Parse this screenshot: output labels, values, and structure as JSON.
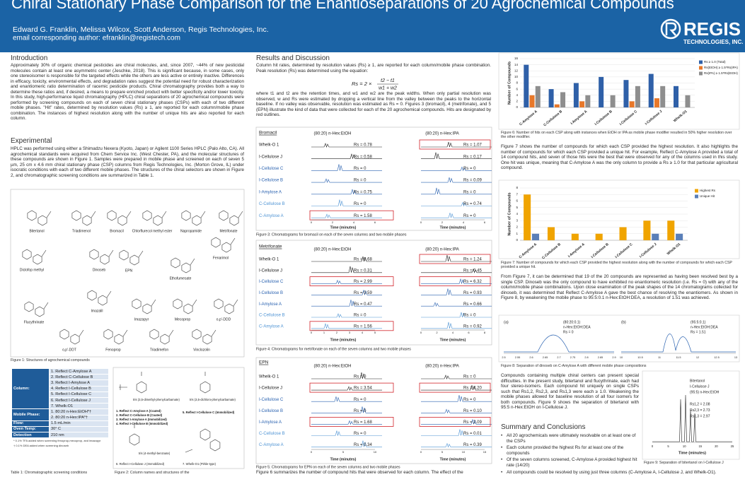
{
  "header": {
    "title": "Chiral Stationary Phase Comparison for the Enantioseparations of 20 Agrochemical Compounds",
    "authors": "Edward G. Franklin, Melissa Wilcox, Scott Anderson, Regis Technologies, Inc.",
    "email": "email corresponding author: efranklin@registech.com",
    "logo": "REGIS",
    "logo_sub": "TECHNOLOGIES, INC."
  },
  "introduction": {
    "heading": "Introduction",
    "text": "Approximately 30% of organic chemical pesticides are chiral molecules, and, since 2007, ~44% of new pesticidal molecules contain at least one asymmetric center (Jeschke, 2018). This is significant because, in some cases, only one stereoisomer is responsible for the targeted effects while the others are less active or entirely inactive. Differences in efficacy, toxicity, environmental effects, and degradation rates suggest the potential need for robust characterization and enantiomeric ratio determination of racemic pesticide products. Chiral chromatography provides both a way to determine these ratios and, if desired, a means to prepare enriched product with better specificity and/or lower toxicity. In this study, high-performance liquid chromatography (HPLC) chiral separations of 20 agrochemical compounds were performed by screening compounds on each of seven chiral stationary phases (CSPs) with each of two different mobile phases. \"Hit\" rates, determined by resolution values (Rs) ≥ 1, are reported for each column/mobile phase combination. The instances of highest resolution along with the number of unique hits are also reported for each column."
  },
  "experimental": {
    "heading": "Experimental",
    "text": "HPLC was performed using either a Shimadzu Nexera (Kyoto, Japan) or Agilent 1100 Series HPLC (Palo Alto, CA). All agrochemical standards were acquired from Chem Service Inc. (West Chester, PA), and the molecular structures of these compounds are shown in Figure 1. Samples were prepared in mobile phase and screened on each of seven 5 µm, 25 cm x 4.6 mm chiral stationary phase (CSP) columns from Regis Technologies, Inc. (Morton Grove, IL) under isocratic conditions with each of two different mobile phases. The structures of the chiral selectors are shown in Figure 2, and chromatographic screening conditions are summarized in Table 1."
  },
  "figure1": {
    "compounds": [
      "Bitertanol",
      "Triadimenol",
      "Bromacil",
      "Chlorflurecol methyl ester",
      "Napropamide",
      "Metrifonate",
      "Diclofop methyl",
      "Dinoseb",
      "EPN",
      "Ethofumesate",
      "Fenarimol",
      "Imazalil",
      "Flucythrinate",
      "Imazapyr",
      "Mecoprop",
      "o,p'-DDD",
      "o,p'-DDT",
      "Fenoprop",
      "Triadimefon",
      "Vinclozolin"
    ],
    "caption": "Figure 1: Structures of agrochemical compounds"
  },
  "table1": {
    "rows": [
      {
        "label": "Column:",
        "items": [
          "1. Reflect C-Amylose A",
          "2. Reflect C-Cellulose B",
          "3. Reflect I-Amylose A",
          "4. Reflect I-Cellulose B",
          "5. Reflect I-Cellulose C",
          "6. Reflect I-Cellulose J",
          "7. Whelk-O1"
        ]
      },
      {
        "label": "Mobile Phase:",
        "items": [
          "1. 80:20 n-Hex:EtOH*†",
          "2. 80:20 n-Hex:IPA*†"
        ]
      },
      {
        "label": "Flow:",
        "items": [
          "1.5 mL/min"
        ]
      },
      {
        "label": "Oven Temp:",
        "items": [
          "30° C"
        ]
      },
      {
        "label": "Detection",
        "items": [
          "210 nm"
        ]
      }
    ],
    "notes": [
      "* 0.1% TFA added when screening fenoprop,mecoprop, and imazapyr",
      "† 0.1% DEA added when screening dinoseb"
    ],
    "caption": "Table 1: Chromatographic screening conditions"
  },
  "figure2": {
    "labels": [
      "tris (3,5-dimethyl-phenylcarbamate)",
      "tris (3,5-dichloro-phenylcarbamate)",
      "1. Reflect C-Amylose A (Coated)",
      "2. Reflect C-Cellulose B (Coated)",
      "3. Reflect I-Amylose A (Immobilized)",
      "4. Reflect I-Cellulose B (Immobilized)",
      "5. Reflect I-Cellulose C (Immobilized)",
      "tris (4-methyl-benzoate)",
      "6. Reflect I-Cellulose J (Immobilized)",
      "7. Whelk-O1 (Pirkle-type)"
    ],
    "caption": "Figure 2: Column names and structures of the"
  },
  "results": {
    "heading": "Results and Discussion",
    "text1": "Column hit rates, determined by resolution values (Rs) ≥ 1, are reported for each column/mobile phase combination. Peak resolution (Rs) was determined using the equation:",
    "equation": {
      "lhs": "Rs = 2 ×",
      "num": "t2 − t1",
      "den": "w1 + w2"
    },
    "text2": "where t1 and t2 are the retention times, and w1 and w2 are the peak widths. When only partial resolution was observed, w and Rs were estimated by dropping a vertical line from the valley between the peaks to the horizontal baseline. If no valley was observable, resolution was estimated as Rs = 0. Figures 3 (bromacil), 4 (metrifonate), and 5 (EPN) illustrate the kind of data that were collected for each of the 20 agrochemical compounds. Hits are designated by red outlines.",
    "text3": "Figure 6 summarizes the number of compound hits that were observed for each column. The effect of the"
  },
  "chromatograms": [
    {
      "compound": "Bromacil",
      "phases": [
        "(80:20) n-Hex:EtOH",
        "(80:20) n-Hex:IPA"
      ],
      "rows": [
        {
          "column": "Whelk-O 1",
          "color": "#222222",
          "rs": [
            "Rs = 0.78",
            "Rs = 1.07"
          ],
          "highlight": [
            false,
            true
          ]
        },
        {
          "column": "I-Cellulose J",
          "color": "#222222",
          "rs": [
            "Rs = 0.58",
            "Rs = 0.17"
          ],
          "highlight": [
            false,
            false
          ]
        },
        {
          "column": "I-Cellulose C",
          "color": "#2a62b0",
          "rs": [
            "Rs = 0",
            "Rs = 0"
          ],
          "highlight": [
            false,
            false
          ]
        },
        {
          "column": "I-Cellulose B",
          "color": "#2a62b0",
          "rs": [
            "Rs = 0",
            "Rs = 0.09"
          ],
          "highlight": [
            false,
            false
          ]
        },
        {
          "column": "I-Amylose A",
          "color": "#2a62b0",
          "rs": [
            "Rs = 0.75",
            "Rs = 0"
          ],
          "highlight": [
            false,
            false
          ]
        },
        {
          "column": "C-Cellulose B",
          "color": "#4f94d4",
          "rs": [
            "Rs = 0",
            "Rs = 0.74"
          ],
          "highlight": [
            false,
            false
          ]
        },
        {
          "column": "C-Amylose A",
          "color": "#4f94d4",
          "rs": [
            "Rs = 1.58",
            "Rs = 0"
          ],
          "highlight": [
            true,
            false
          ]
        }
      ],
      "ticks": [
        [
          0,
          2,
          4,
          6
        ],
        [
          0,
          2,
          4,
          6
        ]
      ],
      "xlabel": "Time (minutes)",
      "caption": "Figure 3: Chromatograms for bromacil on each of the seven columns and two mobile phases"
    },
    {
      "compound": "Metrifonate",
      "phases": [
        "(80:20) n-Hex:EtOH",
        "(80:20) n-Hex:IPA"
      ],
      "rows": [
        {
          "column": "Whelk-O 1",
          "color": "#222222",
          "rs": [
            "Rs = 0.68",
            "Rs = 1.24"
          ],
          "highlight": [
            false,
            true
          ]
        },
        {
          "column": "I-Cellulose J",
          "color": "#222222",
          "rs": [
            "Rs = 0.31",
            "Rs = 0.45"
          ],
          "highlight": [
            false,
            false
          ]
        },
        {
          "column": "I-Cellulose C",
          "color": "#2a62b0",
          "rs": [
            "Rs = 2.99",
            "Rs = 6.32"
          ],
          "highlight": [
            true,
            true
          ]
        },
        {
          "column": "I-Cellulose B",
          "color": "#2a62b0",
          "rs": [
            "Rs = 0.59",
            "Rs = 0.93"
          ],
          "highlight": [
            false,
            false
          ]
        },
        {
          "column": "I-Amylose A",
          "color": "#2a62b0",
          "rs": [
            "Rs = 0.47",
            "Rs = 0.66"
          ],
          "highlight": [
            false,
            false
          ]
        },
        {
          "column": "C-Cellulose B",
          "color": "#4f94d4",
          "rs": [
            "Rs = 0",
            "Rs = 0"
          ],
          "highlight": [
            false,
            false
          ]
        },
        {
          "column": "C-Amylose A",
          "color": "#4f94d4",
          "rs": [
            "Rs = 1.56",
            "Rs = 0.92"
          ],
          "highlight": [
            true,
            false
          ]
        }
      ],
      "ticks": [
        [
          0,
          1,
          2,
          3,
          4,
          5
        ],
        [
          0,
          2,
          4,
          6,
          8
        ]
      ],
      "xlabel": "Time (minutes)",
      "caption": "Figure 4: Chromatograms for metrifonate on each of the seven columns and two mobile phases"
    },
    {
      "compound": "EPN",
      "phases": [
        "(80:20) n-Hex:EtOH",
        "(80:20) n-Hex:IPA"
      ],
      "rows": [
        {
          "column": "Whelk-O 1",
          "color": "#222222",
          "rs": [
            "Rs = 0",
            "Rs = 0"
          ],
          "highlight": [
            false,
            false
          ]
        },
        {
          "column": "I-Cellulose J",
          "color": "#222222",
          "rs": [
            "Rs = 3.54",
            "Rs = 4.20"
          ],
          "highlight": [
            true,
            true
          ]
        },
        {
          "column": "I-Cellulose C",
          "color": "#2a62b0",
          "rs": [
            "Rs = 0",
            "Rs = 0"
          ],
          "highlight": [
            false,
            false
          ]
        },
        {
          "column": "I-Cellulose B",
          "color": "#2a62b0",
          "rs": [
            "Rs = 0",
            "Rs = 0.10"
          ],
          "highlight": [
            false,
            false
          ]
        },
        {
          "column": "I-Amylose A",
          "color": "#2a62b0",
          "rs": [
            "Rs = 1.68",
            "Rs = 2.09"
          ],
          "highlight": [
            true,
            true
          ]
        },
        {
          "column": "C-Cellulose B",
          "color": "#4f94d4",
          "rs": [
            "Rs = 0",
            "Rs = 0.01"
          ],
          "highlight": [
            false,
            false
          ]
        },
        {
          "column": "C-Amylose A",
          "color": "#4f94d4",
          "rs": [
            "Rs = 0.34",
            "Rs = 0.39"
          ],
          "highlight": [
            false,
            false
          ]
        }
      ],
      "ticks": [
        [
          0,
          5,
          10
        ],
        [
          0,
          5,
          10,
          15
        ]
      ],
      "xlabel": "Time (minutes)",
      "caption": "Figure 5: Chromatograms for EPN on each of the seven columns and two mobile phases"
    }
  ],
  "chart_data": [
    {
      "type": "bar",
      "ylabel": "Number of Compounds",
      "categories": [
        "C-Amylose A",
        "C-Cellulose B",
        "I-Amylose A",
        "I-Cellulose B",
        "I-Cellulose C",
        "I-Cellulose J",
        "Whelk-O1"
      ],
      "series": [
        {
          "name": "Rs ≥ 1.0 (Total)",
          "color": "#2f60a8",
          "values": [
            14,
            6,
            8,
            10,
            9,
            11,
            7
          ]
        },
        {
          "name": "Rs(EtOH) ≥ 1.5*Rs(IPA)",
          "color": "#e8782a",
          "values": [
            4,
            1,
            2,
            0,
            2,
            3,
            0
          ]
        },
        {
          "name": "Rs(IPA) ≥ 1.5*Rs(EtOH)",
          "color": "#8e8e8e",
          "values": [
            7,
            5,
            4,
            4,
            7,
            7,
            4
          ]
        }
      ],
      "ylim": [
        0,
        16
      ],
      "yticks": [
        0,
        2,
        4,
        6,
        8,
        10,
        12,
        14,
        16
      ],
      "grid": true,
      "legend": "right",
      "caption": "Figure 6: Number of hits on each CSP along with instances when EtOH or IPA as mobile phase modifier resulted in 50% higher resolution over the other modifier."
    },
    {
      "type": "bar",
      "ylabel": "Number of Compounds",
      "categories": [
        "C-Amylose A",
        "C-Cellulose B",
        "I-Amylose A",
        "I-Cellulose B",
        "I-Cellulose C",
        "I-Cellulose J",
        "Whelk-O1"
      ],
      "series": [
        {
          "name": "Highest Rs",
          "color": "#f0a400",
          "values": [
            7,
            2,
            1,
            1,
            2,
            3,
            3
          ]
        },
        {
          "name": "Unique Hit",
          "color": "#5a7fb8",
          "values": [
            1,
            0,
            0,
            0,
            0,
            1,
            1
          ]
        }
      ],
      "ylim": [
        0,
        8
      ],
      "yticks": [
        0,
        1,
        2,
        3,
        4,
        5,
        6,
        7,
        8
      ],
      "grid": true,
      "legend": "right",
      "caption": "Figure 7: Number of compounds for which each CSP provided the highest resolution along with the number of compounds for which each CSP provided a unique hit."
    }
  ],
  "discussion": {
    "text1": "Figure 7 shows the number of compounds for which each CSP provided the highest resolution. It also highlights the number of compounds for which each CSP provided a unique hit. For example, Reflect C-Amylose A provided a total of 14 compound hits, and seven of those hits were the best that were observed for any of the columns used in this study. One hit was unique, meaning that C-Amylose A was the only column to provide a Rs ≥ 1.0 for that particular agricultural compound.",
    "text2": "From Figure 7, it can be determined that 19 of the 20 compounds are represented as having been resolved best by a single CSP. Dinoseb was the only compound to have exhibited no enantiomeric resolution (i.e. Rs = 0) with any of the column/mobile phase combinations. Upon close examination of the peak shapes of the 14 chromatograms collected for dinoseb, it was determined that Reflect C-Amylose A gave the best chance of resolving the enantiomers. As shown in Figure 8, by weakening the mobile phase to 95:5:0.1 n-Hex:EtOH:DEA, a resolution of 1.51 was achieved.",
    "text3": "Compounds containing multiple chiral centers can present special difficulties. In the present study, bitertanol and flucythrinate, each had four stereo-isomers. Each compound hit uniquely on single CSPs such that Rs1,2, Rs2,3, and Rs1,3 were each ≥ 1.0. Weakening the mobile phases allowed for baseline resolution of all four isomers for both compounds. Figure 9 shows the separation of bitertanol with 95:5 n-Hex:EtOH on I-Cellulose J."
  },
  "figure8": {
    "panels": [
      {
        "tag": "(a)",
        "lines": [
          "(80:20:0.1)",
          "n-Hex:EtOH:DEA",
          "Rs = 0"
        ],
        "ticks": [
          2.5,
          2.55,
          2.6,
          2.65,
          2.7,
          2.75,
          2.8,
          2.85,
          2.9
        ]
      },
      {
        "tag": "(b)",
        "lines": [
          "(95:5:0.1)",
          "n-Hex:EtOH:DEA",
          "Rs = 1.51"
        ],
        "ticks": [
          10,
          10.5,
          11,
          11.5,
          12,
          12.5,
          13
        ]
      }
    ],
    "caption": "Figure 8: Separation of dinoseb on C-Amylose A with different mobile phase compositions"
  },
  "figure9": {
    "lines": [
      "Bitertanol",
      "I-Cellulose J",
      "(95:5) n-Hex:EtOH"
    ],
    "rs": [
      "Rs1,2 = 2.08",
      "Rs2,3 = 2.73",
      "Rs1,3 = 2.97"
    ],
    "ticks": [
      0,
      5,
      10,
      15,
      20,
      25
    ],
    "xlabel": "Time (minutes)",
    "caption": "Figure 9: Separation of bitertanol on I-Cellulose J"
  },
  "summary": {
    "heading": "Summary and Conclusions",
    "bullets": [
      "All 20 agrochemicals were ultimately resolvable on at least one of the CSPs",
      "Each column provided the highest Rs for at least one of the compounds",
      "Of the seven columns screened, C-Amylose A provided highest hit rate (14/20)",
      "All compounds could be resolved by using just three columns (C-Amylose A, I-Cellulose J, and Whelk-O1)."
    ]
  }
}
